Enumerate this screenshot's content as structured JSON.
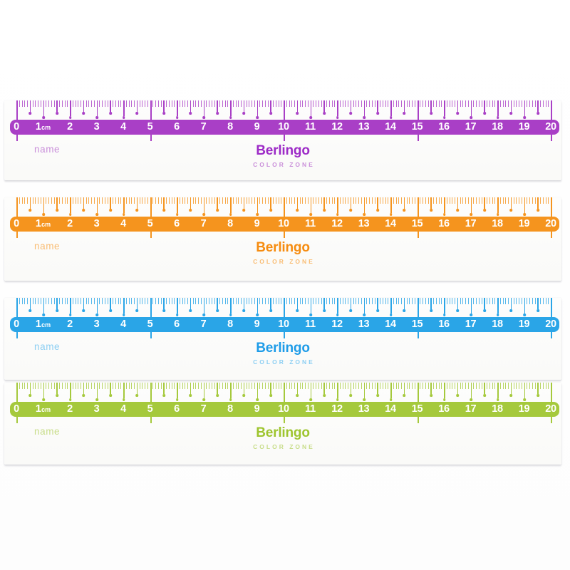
{
  "page": {
    "background": "#ffffff"
  },
  "brand": {
    "name": "Berlingo",
    "tagline": "COLOR ZONE"
  },
  "ruler": {
    "name_label": "name",
    "unit_label": "cm",
    "unit_after_index": 1,
    "cm_count": 20,
    "numbers": [
      "0",
      "1",
      "2",
      "3",
      "4",
      "5",
      "6",
      "7",
      "8",
      "9",
      "10",
      "11",
      "12",
      "13",
      "14",
      "15",
      "16",
      "17",
      "18",
      "19",
      "20"
    ]
  },
  "rulers": [
    {
      "id": "purple",
      "color": "#a93fc6",
      "logo_color": "#9d2bc7",
      "light_color": "#ca90da"
    },
    {
      "id": "orange",
      "color": "#f5941e",
      "logo_color": "#f68c10",
      "light_color": "#f9bd74"
    },
    {
      "id": "blue",
      "color": "#2aa5e7",
      "logo_color": "#1e9ce8",
      "light_color": "#8dcff3"
    },
    {
      "id": "green",
      "color": "#a5c93c",
      "logo_color": "#9ec52f",
      "light_color": "#c8dd89"
    }
  ]
}
